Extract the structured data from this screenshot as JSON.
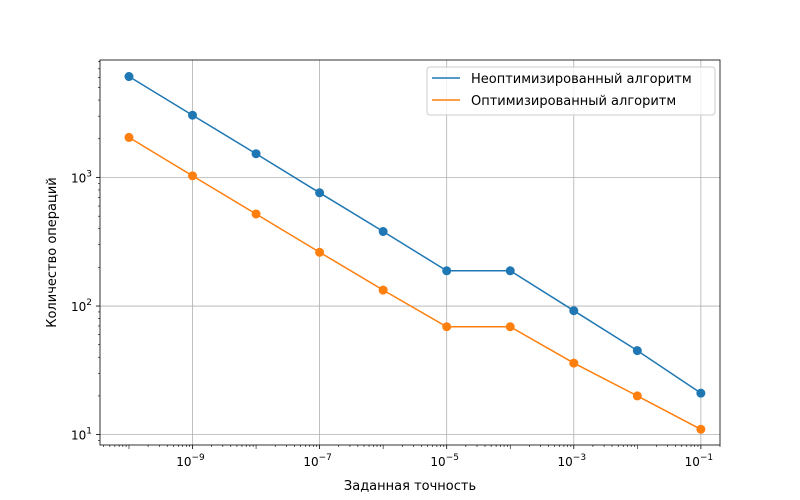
{
  "chart_data": {
    "type": "line",
    "title": "",
    "xlabel": "Заданная точность",
    "ylabel": "Количество операций",
    "xscale": "log",
    "yscale": "log",
    "xlim": [
      3.5e-11,
      0.2
    ],
    "ylim": [
      8.3,
      8200
    ],
    "grid": true,
    "legend_position": "top-right",
    "x": [
      1e-10,
      1e-09,
      1e-08,
      1e-07,
      1e-06,
      1e-05,
      0.0001,
      0.001,
      0.01,
      0.1
    ],
    "x_ticks": [
      {
        "value": 1e-09,
        "base": "10",
        "exp": "−9"
      },
      {
        "value": 1e-07,
        "base": "10",
        "exp": "−7"
      },
      {
        "value": 1e-05,
        "base": "10",
        "exp": "−5"
      },
      {
        "value": 0.001,
        "base": "10",
        "exp": "−3"
      },
      {
        "value": 0.1,
        "base": "10",
        "exp": "−1"
      }
    ],
    "y_ticks": [
      {
        "value": 10,
        "base": "10",
        "exp": "1"
      },
      {
        "value": 100,
        "base": "10",
        "exp": "2"
      },
      {
        "value": 1000,
        "base": "10",
        "exp": "3"
      }
    ],
    "series": [
      {
        "name": "Неоптимизированный алгоритм",
        "color": "#1f77b4",
        "values": [
          6100,
          3050,
          1530,
          760,
          380,
          188,
          188,
          92,
          45,
          21
        ]
      },
      {
        "name": "Оптимизированный алгоритм",
        "color": "#ff7f0e",
        "values": [
          2050,
          1030,
          520,
          262,
          133,
          69,
          69,
          36,
          20,
          11
        ]
      }
    ]
  }
}
